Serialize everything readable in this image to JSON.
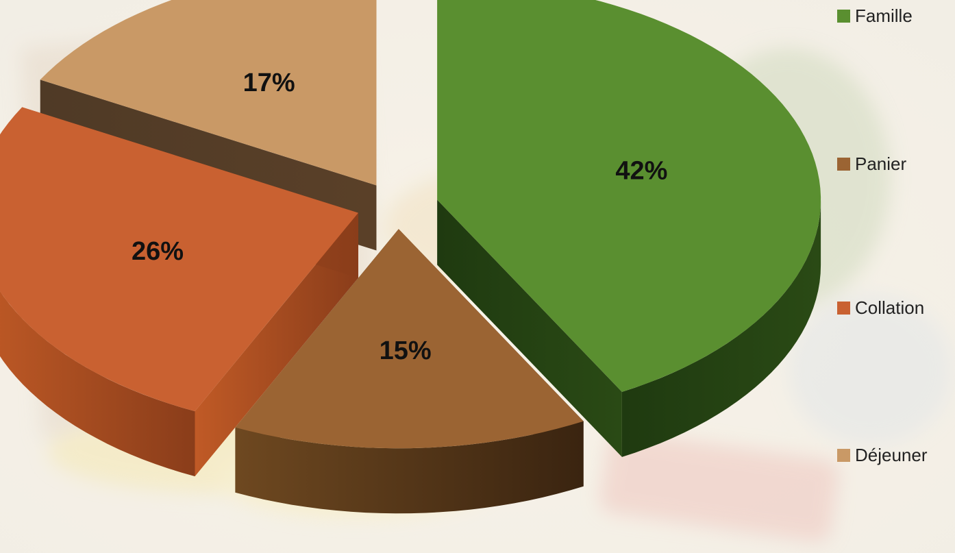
{
  "chart_data": {
    "type": "pie",
    "style": "3d-exploded",
    "title": "",
    "categories": [
      "Famille",
      "Panier",
      "Collation",
      "Déjeuner"
    ],
    "values": [
      42,
      15,
      26,
      17
    ],
    "labels": [
      "42%",
      "15%",
      "26%",
      "17%"
    ],
    "colors": [
      "#5a8f30",
      "#9b6433",
      "#c96131",
      "#c99966"
    ],
    "legend_position": "right"
  }
}
